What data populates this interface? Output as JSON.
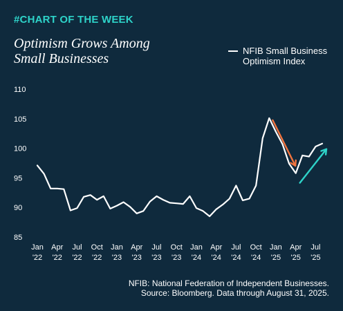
{
  "tag": "#CHART OF THE WEEK",
  "title_line1": "Optimism Grows Among",
  "title_line2": "Small Businesses",
  "footnote_line1": "NFIB: National Federation of Independent Businesses.",
  "footnote_line2": "Source: Bloomberg. Data through August 31, 2025.",
  "colors": {
    "background": "#0f2a3d",
    "tag": "#2ed3c9",
    "line": "#ffffff",
    "arrow_down": "#f2743e",
    "arrow_up": "#2ed3c9"
  },
  "chart_data": {
    "type": "line",
    "title": "Optimism Grows Among Small Businesses",
    "xlabel": "",
    "ylabel": "",
    "ylim": [
      85,
      110
    ],
    "yticks": [
      85,
      90,
      95,
      100,
      105,
      110
    ],
    "grid": false,
    "legend_position": "top-right",
    "x": [
      "2022-01",
      "2022-02",
      "2022-03",
      "2022-04",
      "2022-05",
      "2022-06",
      "2022-07",
      "2022-08",
      "2022-09",
      "2022-10",
      "2022-11",
      "2022-12",
      "2023-01",
      "2023-02",
      "2023-03",
      "2023-04",
      "2023-05",
      "2023-06",
      "2023-07",
      "2023-08",
      "2023-09",
      "2023-10",
      "2023-11",
      "2023-12",
      "2024-01",
      "2024-02",
      "2024-03",
      "2024-04",
      "2024-05",
      "2024-06",
      "2024-07",
      "2024-08",
      "2024-09",
      "2024-10",
      "2024-11",
      "2024-12",
      "2025-01",
      "2025-02",
      "2025-03",
      "2025-04",
      "2025-05",
      "2025-06",
      "2025-07",
      "2025-08"
    ],
    "xtick_labels": [
      {
        "month": "Jan",
        "year": "'22"
      },
      {
        "month": "Apr",
        "year": "'22"
      },
      {
        "month": "Jul",
        "year": "'22"
      },
      {
        "month": "Oct",
        "year": "'22"
      },
      {
        "month": "Jan",
        "year": "'23"
      },
      {
        "month": "Apr",
        "year": "'23"
      },
      {
        "month": "Jul",
        "year": "'23"
      },
      {
        "month": "Oct",
        "year": "'23"
      },
      {
        "month": "Jan",
        "year": "'24"
      },
      {
        "month": "Apr",
        "year": "'24"
      },
      {
        "month": "Jul",
        "year": "'24"
      },
      {
        "month": "Oct",
        "year": "'24"
      },
      {
        "month": "Jan",
        "year": "'25"
      },
      {
        "month": "Apr",
        "year": "'25"
      },
      {
        "month": "Jul",
        "year": "'25"
      }
    ],
    "series": [
      {
        "name": "NFIB Small Business Optimism Index",
        "values": [
          97.1,
          95.7,
          93.2,
          93.2,
          93.1,
          89.5,
          89.9,
          91.8,
          92.1,
          91.3,
          91.9,
          89.8,
          90.3,
          90.9,
          90.1,
          89.0,
          89.4,
          91.0,
          91.9,
          91.3,
          90.8,
          90.7,
          90.6,
          91.9,
          89.9,
          89.4,
          88.5,
          89.7,
          90.5,
          91.5,
          93.7,
          91.2,
          91.5,
          93.7,
          101.7,
          105.1,
          102.8,
          100.7,
          97.4,
          95.8,
          98.8,
          98.6,
          100.3,
          100.8
        ]
      }
    ],
    "annotations": [
      {
        "type": "arrow",
        "direction": "down",
        "from_x": "2024-12",
        "to_x": "2025-03",
        "color": "#f2743e"
      },
      {
        "type": "arrow",
        "direction": "up",
        "from_x": "2025-04",
        "to_x": "2025-08",
        "color": "#2ed3c9"
      }
    ]
  }
}
